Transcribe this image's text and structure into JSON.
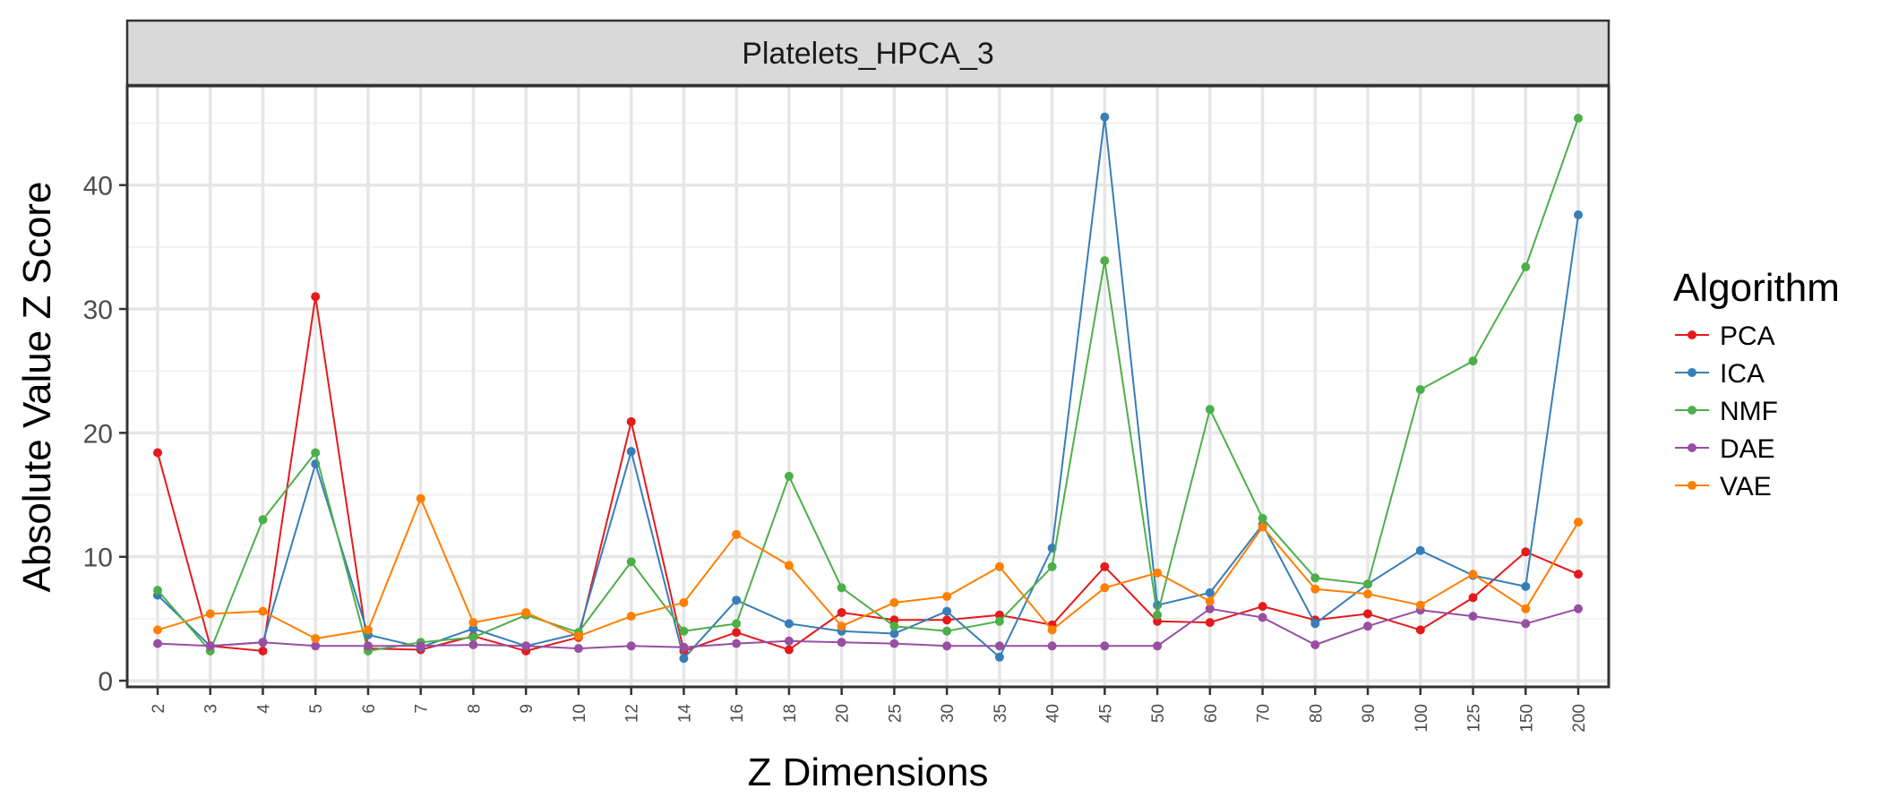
{
  "chart_data": {
    "type": "line",
    "panel_title": "Platelets_HPCA_3",
    "xlabel": "Z Dimensions",
    "ylabel": "Absolute Value Z Score",
    "categories": [
      "2",
      "3",
      "4",
      "5",
      "6",
      "7",
      "8",
      "9",
      "10",
      "12",
      "14",
      "16",
      "18",
      "20",
      "25",
      "30",
      "35",
      "40",
      "45",
      "50",
      "60",
      "70",
      "80",
      "90",
      "100",
      "125",
      "150",
      "200"
    ],
    "yticks": [
      0,
      10,
      20,
      30,
      40
    ],
    "ylim": [
      -0.5,
      48
    ],
    "grid": true,
    "legend": {
      "title": "Algorithm",
      "position": "right"
    },
    "series": [
      {
        "name": "PCA",
        "color": "#e41a1c",
        "values": [
          18.4,
          2.8,
          2.4,
          31.0,
          2.6,
          2.5,
          3.6,
          2.4,
          3.5,
          20.9,
          2.4,
          3.9,
          2.5,
          5.5,
          4.9,
          4.9,
          5.3,
          4.5,
          9.2,
          4.8,
          4.7,
          6.0,
          4.9,
          5.4,
          4.1,
          6.7,
          10.4,
          8.6
        ]
      },
      {
        "name": "ICA",
        "color": "#377eb8",
        "values": [
          6.9,
          2.8,
          3.1,
          17.5,
          3.7,
          2.7,
          4.2,
          2.8,
          3.8,
          18.5,
          1.8,
          6.5,
          4.6,
          4.0,
          3.8,
          5.6,
          1.9,
          10.7,
          45.5,
          6.1,
          7.1,
          12.6,
          4.6,
          7.8,
          10.5,
          8.5,
          7.6,
          37.6
        ]
      },
      {
        "name": "NMF",
        "color": "#4daf4a",
        "values": [
          7.3,
          2.4,
          13.0,
          18.4,
          2.4,
          3.1,
          3.5,
          5.3,
          3.9,
          9.6,
          4.0,
          4.6,
          16.5,
          7.5,
          4.4,
          4.0,
          4.8,
          9.2,
          33.9,
          5.3,
          21.9,
          13.1,
          8.3,
          7.8,
          23.5,
          25.8,
          33.4,
          45.4
        ]
      },
      {
        "name": "DAE",
        "color": "#984ea3",
        "values": [
          3.0,
          2.8,
          3.1,
          2.8,
          2.8,
          2.8,
          2.9,
          2.8,
          2.6,
          2.8,
          2.7,
          3.0,
          3.2,
          3.1,
          3.0,
          2.8,
          2.8,
          2.8,
          2.8,
          2.8,
          5.8,
          5.1,
          2.9,
          4.4,
          5.7,
          5.2,
          4.6,
          5.8
        ]
      },
      {
        "name": "VAE",
        "color": "#ff7f00",
        "values": [
          4.1,
          5.4,
          5.6,
          3.4,
          4.1,
          14.7,
          4.7,
          5.5,
          3.6,
          5.2,
          6.3,
          11.8,
          9.3,
          4.4,
          6.3,
          6.8,
          9.2,
          4.1,
          7.5,
          8.7,
          6.4,
          12.4,
          7.4,
          7.0,
          6.1,
          8.6,
          5.8,
          12.8
        ]
      }
    ]
  }
}
